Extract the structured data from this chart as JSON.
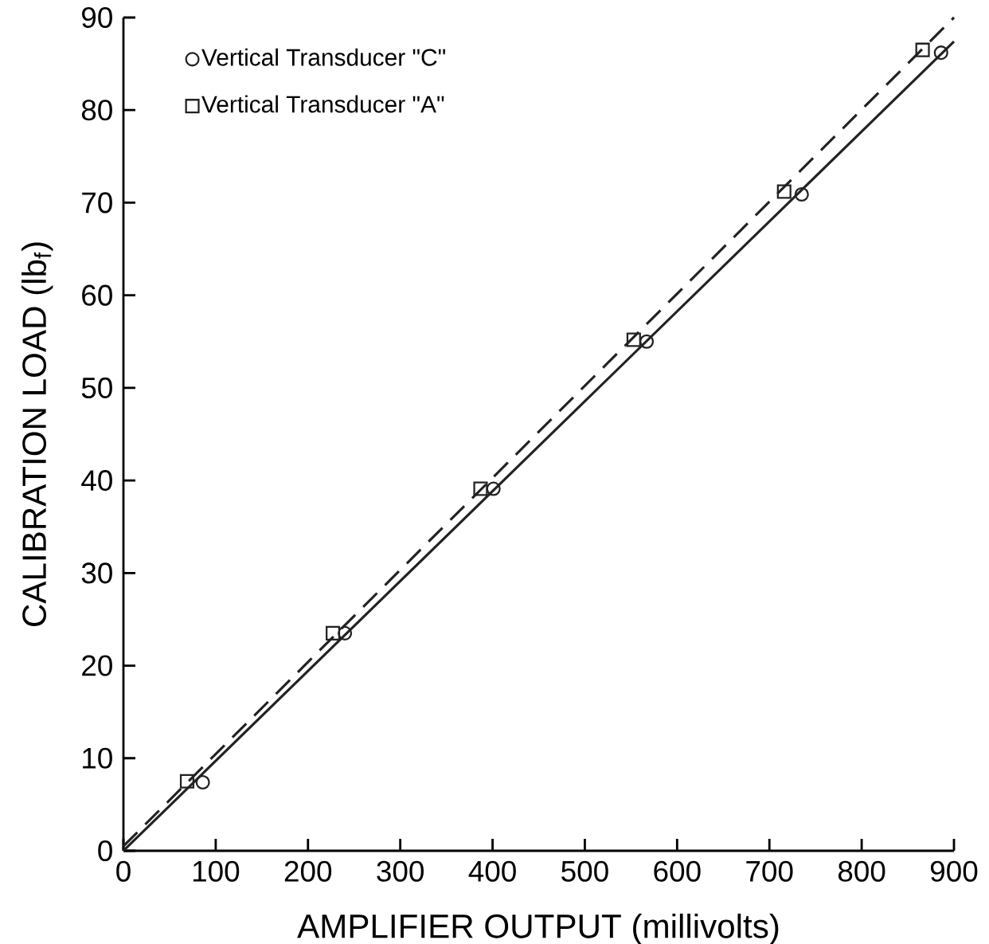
{
  "chart_data": {
    "type": "scatter",
    "xlabel": "AMPLIFIER OUTPUT (millivolts)",
    "ylabel": "CALIBRATION LOAD (lb$_{f}$)",
    "xlim": [
      0,
      900
    ],
    "ylim": [
      0,
      90
    ],
    "xticks": [
      0,
      100,
      200,
      300,
      400,
      500,
      600,
      700,
      800,
      900
    ],
    "yticks": [
      0,
      10,
      20,
      30,
      40,
      50,
      60,
      70,
      80,
      90
    ],
    "grid": false,
    "legend": "top left",
    "series": [
      {
        "name": "Vertical Transducer \"C\"",
        "color": "#222222",
        "marker": "circle",
        "x": [
          86,
          240,
          401,
          567,
          735,
          886
        ],
        "values": [
          7.4,
          23.5,
          39.1,
          55.0,
          70.9,
          86.2
        ]
      },
      {
        "name": "Vertical Transducer \"A\"",
        "color": "#222222",
        "marker": "square",
        "x": [
          69,
          227,
          387,
          553,
          716,
          866
        ],
        "values": [
          7.5,
          23.5,
          39.1,
          55.2,
          71.2,
          86.5
        ]
      },
      {
        "type": "line",
        "color": "#222222",
        "marker": "none",
        "line_style": "solid",
        "x": [
          0,
          900
        ],
        "values": [
          0,
          87.4
        ]
      },
      {
        "type": "line",
        "color": "#222222",
        "marker": "none",
        "line_style": "dashed",
        "x": [
          0,
          900
        ],
        "values": [
          0.5,
          90
        ]
      }
    ]
  }
}
